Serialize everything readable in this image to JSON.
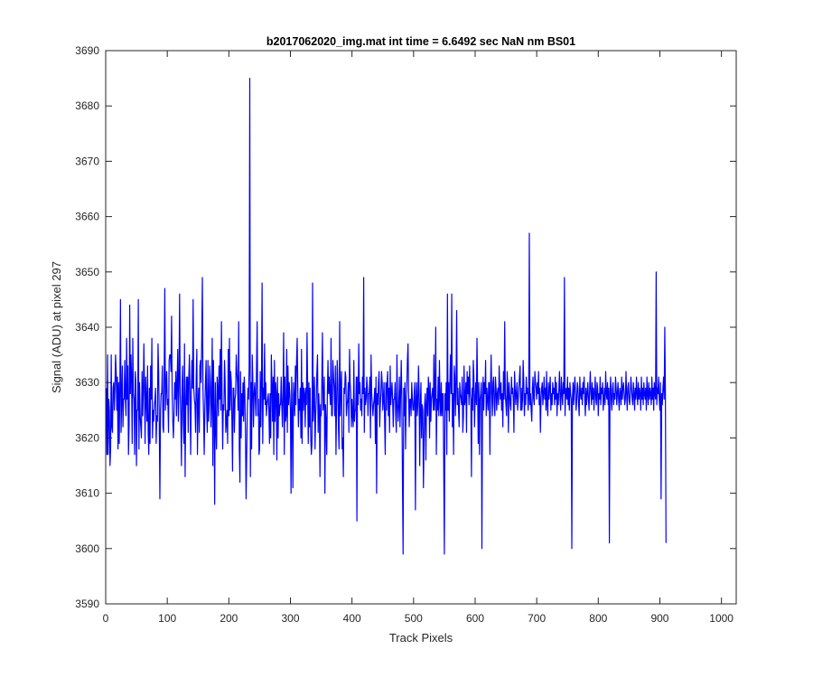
{
  "chart_data": {
    "type": "line",
    "title": "b2017062020_img.mat int time = 6.6492 sec  NaN nm BS01",
    "xlabel": "Track Pixels",
    "ylabel": "Signal (ADU) at pixel 297",
    "xlim": [
      0,
      1024
    ],
    "ylim": [
      3590,
      3690
    ],
    "xticks": [
      0,
      100,
      200,
      300,
      400,
      500,
      600,
      700,
      800,
      900,
      1000
    ],
    "yticks": [
      3590,
      3600,
      3610,
      3620,
      3630,
      3640,
      3650,
      3660,
      3670,
      3680,
      3690
    ],
    "grid": false,
    "legend": "none",
    "colors": {
      "line": "#0000ff",
      "axes": "#262626",
      "background": "#ffffff"
    },
    "series": [
      {
        "x_start": 1,
        "x_step": 1,
        "values": [
          3629,
          3617,
          3635,
          3617,
          3627,
          3625,
          3615,
          3618,
          3635,
          3622,
          3621,
          3629,
          3630,
          3625,
          3629,
          3635,
          3632,
          3625,
          3631,
          3618,
          3630,
          3619,
          3629,
          3645,
          3621,
          3627,
          3633,
          3622,
          3627,
          3627,
          3634,
          3627,
          3624,
          3638,
          3627,
          3633,
          3617,
          3622,
          3644,
          3628,
          3635,
          3631,
          3619,
          3638,
          3628,
          3627,
          3617,
          3632,
          3630,
          3615,
          3625,
          3625,
          3645,
          3618,
          3630,
          3624,
          3622,
          3620,
          3632,
          3624,
          3628,
          3637,
          3629,
          3619,
          3631,
          3627,
          3623,
          3633,
          3621,
          3617,
          3629,
          3619,
          3633,
          3627,
          3638,
          3620,
          3625,
          3623,
          3626,
          3627,
          3629,
          3619,
          3624,
          3623,
          3637,
          3632,
          3623,
          3609,
          3625,
          3628,
          3628,
          3633,
          3622,
          3621,
          3632,
          3647,
          3625,
          3629,
          3632,
          3626,
          3627,
          3621,
          3634,
          3635,
          3635,
          3632,
          3642,
          3628,
          3623,
          3620,
          3624,
          3630,
          3627,
          3632,
          3624,
          3630,
          3636,
          3623,
          3630,
          3646,
          3628,
          3624,
          3615,
          3629,
          3633,
          3623,
          3619,
          3637,
          3613,
          3625,
          3631,
          3626,
          3631,
          3621,
          3631,
          3635,
          3627,
          3617,
          3628,
          3634,
          3629,
          3645,
          3629,
          3627,
          3626,
          3621,
          3631,
          3636,
          3617,
          3626,
          3629,
          3621,
          3633,
          3634,
          3630,
          3638,
          3649,
          3629,
          3624,
          3617,
          3625,
          3630,
          3634,
          3625,
          3621,
          3634,
          3623,
          3626,
          3633,
          3630,
          3622,
          3627,
          3638,
          3615,
          3634,
          3625,
          3608,
          3630,
          3622,
          3618,
          3631,
          3629,
          3624,
          3633,
          3627,
          3636,
          3625,
          3641,
          3628,
          3618,
          3626,
          3625,
          3634,
          3630,
          3621,
          3623,
          3625,
          3619,
          3636,
          3624,
          3638,
          3625,
          3632,
          3630,
          3623,
          3614,
          3629,
          3629,
          3621,
          3627,
          3628,
          3635,
          3632,
          3630,
          3625,
          3641,
          3618,
          3612,
          3632,
          3620,
          3628,
          3624,
          3630,
          3623,
          3631,
          3628,
          3621,
          3609,
          3617,
          3625,
          3629,
          3627,
          3633,
          3685,
          3613,
          3630,
          3618,
          3635,
          3630,
          3622,
          3628,
          3630,
          3627,
          3624,
          3633,
          3641,
          3624,
          3627,
          3617,
          3618,
          3632,
          3622,
          3630,
          3648,
          3619,
          3629,
          3627,
          3637,
          3626,
          3630,
          3624,
          3626,
          3627,
          3628,
          3625,
          3619,
          3628,
          3620,
          3635,
          3630,
          3623,
          3631,
          3617,
          3634,
          3623,
          3630,
          3628,
          3616,
          3631,
          3620,
          3628,
          3624,
          3626,
          3626,
          3631,
          3626,
          3622,
          3628,
          3639,
          3617,
          3631,
          3623,
          3624,
          3636,
          3621,
          3633,
          3626,
          3630,
          3628,
          3625,
          3610,
          3631,
          3624,
          3611,
          3630,
          3627,
          3624,
          3633,
          3626,
          3634,
          3638,
          3629,
          3622,
          3627,
          3625,
          3629,
          3620,
          3636,
          3619,
          3630,
          3625,
          3629,
          3628,
          3622,
          3629,
          3626,
          3639,
          3629,
          3619,
          3630,
          3622,
          3629,
          3620,
          3617,
          3619,
          3648,
          3623,
          3627,
          3631,
          3618,
          3624,
          3627,
          3632,
          3635,
          3621,
          3628,
          3625,
          3613,
          3626,
          3624,
          3630,
          3639,
          3625,
          3627,
          3631,
          3610,
          3626,
          3623,
          3617,
          3628,
          3634,
          3628,
          3631,
          3628,
          3626,
          3638,
          3624,
          3624,
          3634,
          3631,
          3629,
          3624,
          3633,
          3617,
          3626,
          3634,
          3630,
          3622,
          3618,
          3641,
          3624,
          3629,
          3632,
          3618,
          3620,
          3613,
          3629,
          3628,
          3632,
          3631,
          3624,
          3626,
          3627,
          3630,
          3621,
          3636,
          3630,
          3628,
          3622,
          3627,
          3624,
          3622,
          3634,
          3623,
          3625,
          3625,
          3631,
          3605,
          3631,
          3626,
          3637,
          3628,
          3630,
          3625,
          3627,
          3624,
          3631,
          3628,
          3649,
          3621,
          3629,
          3626,
          3627,
          3631,
          3629,
          3624,
          3628,
          3628,
          3631,
          3620,
          3635,
          3628,
          3626,
          3624,
          3626,
          3627,
          3629,
          3619,
          3631,
          3610,
          3628,
          3626,
          3630,
          3632,
          3622,
          3626,
          3628,
          3632,
          3630,
          3625,
          3627,
          3630,
          3623,
          3617,
          3630,
          3625,
          3630,
          3632,
          3624,
          3629,
          3621,
          3633,
          3626,
          3628,
          3630,
          3627,
          3622,
          3627,
          3627,
          3630,
          3624,
          3621,
          3635,
          3626,
          3623,
          3626,
          3631,
          3622,
          3628,
          3634,
          3627,
          3612,
          3599,
          3629,
          3624,
          3630,
          3618,
          3627,
          3629,
          3634,
          3637,
          3627,
          3622,
          3627,
          3627,
          3624,
          3630,
          3627,
          3625,
          3625,
          3628,
          3630,
          3607,
          3627,
          3630,
          3624,
          3626,
          3633,
          3628,
          3615,
          3626,
          3630,
          3620,
          3626,
          3625,
          3611,
          3619,
          3626,
          3628,
          3616,
          3626,
          3629,
          3624,
          3631,
          3629,
          3620,
          3630,
          3623,
          3627,
          3628,
          3629,
          3625,
          3635,
          3625,
          3628,
          3640,
          3617,
          3627,
          3625,
          3631,
          3624,
          3634,
          3627,
          3624,
          3630,
          3624,
          3628,
          3628,
          3615,
          3599,
          3628,
          3625,
          3630,
          3617,
          3646,
          3625,
          3630,
          3623,
          3630,
          3635,
          3628,
          3646,
          3622,
          3628,
          3617,
          3633,
          3631,
          3624,
          3630,
          3643,
          3626,
          3629,
          3625,
          3622,
          3630,
          3628,
          3627,
          3626,
          3631,
          3621,
          3624,
          3633,
          3626,
          3627,
          3630,
          3621,
          3632,
          3628,
          3631,
          3626,
          3633,
          3628,
          3627,
          3613,
          3629,
          3625,
          3634,
          3631,
          3622,
          3627,
          3630,
          3626,
          3638,
          3629,
          3619,
          3630,
          3617,
          3627,
          3628,
          3630,
          3600,
          3627,
          3631,
          3625,
          3630,
          3628,
          3634,
          3624,
          3629,
          3627,
          3625,
          3630,
          3630,
          3617,
          3629,
          3635,
          3628,
          3624,
          3630,
          3631,
          3626,
          3624,
          3631,
          3629,
          3625,
          3628,
          3629,
          3626,
          3633,
          3629,
          3627,
          3630,
          3625,
          3628,
          3622,
          3632,
          3627,
          3641,
          3628,
          3626,
          3624,
          3632,
          3629,
          3621,
          3630,
          3628,
          3626,
          3625,
          3631,
          3628,
          3629,
          3627,
          3621,
          3632,
          3629,
          3626,
          3628,
          3630,
          3625,
          3627,
          3629,
          3631,
          3633,
          3625,
          3629,
          3625,
          3627,
          3634,
          3630,
          3624,
          3628,
          3626,
          3631,
          3628,
          3629,
          3625,
          3627,
          3657,
          3626,
          3628,
          3625,
          3623,
          3629,
          3631,
          3627,
          3626,
          3632,
          3630,
          3629,
          3627,
          3630,
          3628,
          3632,
          3626,
          3629,
          3621,
          3627,
          3629,
          3630,
          3626,
          3628,
          3631,
          3627,
          3629,
          3625,
          3632,
          3626,
          3624,
          3630,
          3627,
          3629,
          3631,
          3625,
          3628,
          3626,
          3630,
          3628,
          3629,
          3626,
          3631,
          3627,
          3630,
          3624,
          3628,
          3626,
          3629,
          3632,
          3627,
          3625,
          3631,
          3628,
          3626,
          3630,
          3628,
          3649,
          3624,
          3628,
          3629,
          3627,
          3631,
          3626,
          3629,
          3625,
          3630,
          3628,
          3627,
          3600,
          3627,
          3630,
          3626,
          3629,
          3631,
          3628,
          3625,
          3627,
          3630,
          3629,
          3626,
          3624,
          3631,
          3628,
          3627,
          3629,
          3626,
          3630,
          3628,
          3631,
          3627,
          3624,
          3629,
          3626,
          3628,
          3630,
          3627,
          3625,
          3629,
          3632,
          3628,
          3626,
          3630,
          3627,
          3629,
          3625,
          3628,
          3631,
          3627,
          3626,
          3630,
          3629,
          3624,
          3628,
          3627,
          3631,
          3626,
          3629,
          3628,
          3630,
          3625,
          3627,
          3629,
          3626,
          3632,
          3628,
          3627,
          3630,
          3626,
          3629,
          3601,
          3628,
          3631,
          3627,
          3625,
          3629,
          3630,
          3626,
          3628,
          3627,
          3631,
          3629,
          3626,
          3628,
          3630,
          3627,
          3625,
          3629,
          3628,
          3626,
          3631,
          3627,
          3629,
          3630,
          3628,
          3626,
          3627,
          3632,
          3628,
          3625,
          3629,
          3630,
          3627,
          3626,
          3628,
          3631,
          3629,
          3627,
          3626,
          3630,
          3628,
          3625,
          3629,
          3627,
          3631,
          3628,
          3626,
          3630,
          3627,
          3629,
          3628,
          3625,
          3631,
          3627,
          3629,
          3626,
          3630,
          3628,
          3627,
          3629,
          3625,
          3631,
          3628,
          3626,
          3630,
          3627,
          3629,
          3628,
          3626,
          3631,
          3627,
          3629,
          3625,
          3630,
          3628,
          3627,
          3650,
          3626,
          3629,
          3628,
          3631,
          3627,
          3625,
          3630,
          3609,
          3628,
          3626,
          3629,
          3631,
          3627,
          3640,
          3628,
          3601
        ]
      }
    ]
  }
}
